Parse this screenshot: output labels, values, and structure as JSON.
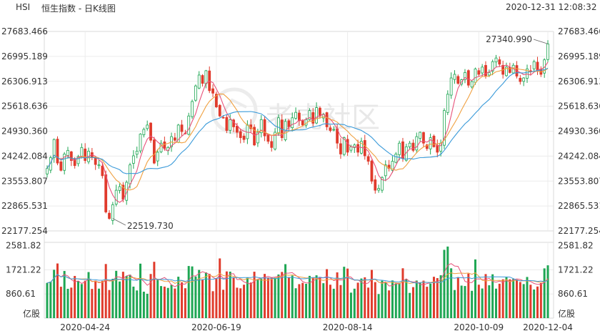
{
  "header": {
    "symbol": "HSI",
    "title": "恒生指数 - 日K线图",
    "timestamp": "2020-12-31 12:08:32"
  },
  "watermark": "老虎社区",
  "chart_data": {
    "type": "candlestick",
    "price_axis": {
      "ticks": [
        "27683.466",
        "26995.189",
        "26306.913",
        "25618.636",
        "24930.360",
        "24242.084",
        "23553.807",
        "22865.531",
        "22177.254"
      ],
      "range": [
        22177.254,
        27683.466
      ]
    },
    "volume_axis": {
      "ticks": [
        "2581.82",
        "1721.22",
        "860.61"
      ],
      "unit": "亿股",
      "range": [
        0,
        2700
      ]
    },
    "x_ticks": [
      "2020-04-24",
      "2020-06-19",
      "2020-08-14",
      "2020-10-09",
      "2020-12-04"
    ],
    "annotations": {
      "low_label": "22519.730",
      "high_label": "27340.990"
    },
    "colors": {
      "up": "#1ea653",
      "down": "#e03b2c",
      "ma1": "#e8527a",
      "ma2": "#f0a040",
      "ma3": "#3a9ad9"
    },
    "closes": [
      23900,
      24200,
      24700,
      24050,
      23850,
      24300,
      24400,
      24120,
      23980,
      24230,
      24480,
      24120,
      24380,
      24200,
      24010,
      24000,
      23700,
      22700,
      22520,
      22900,
      23300,
      23400,
      23050,
      23520,
      24000,
      24250,
      24380,
      24850,
      24980,
      25100,
      24680,
      24050,
      24350,
      24600,
      24450,
      24480,
      24780,
      24680,
      25100,
      24920,
      24870,
      25350,
      25750,
      26180,
      26480,
      26250,
      26600,
      26050,
      25980,
      25600,
      25350,
      25300,
      24950,
      25250,
      25050,
      24900,
      24750,
      24700,
      25100,
      25000,
      24550,
      24900,
      25250,
      24800,
      24650,
      24480,
      24900,
      25300,
      24750,
      25200,
      25050,
      25300,
      25450,
      25220,
      25100,
      25250,
      25500,
      25150,
      25580,
      25350,
      25400,
      25050,
      24950,
      24980,
      24600,
      24300,
      24750,
      24350,
      24500,
      24550,
      24350,
      24650,
      24250,
      24100,
      23550,
      23300,
      23350,
      23650,
      24000,
      23900,
      24100,
      24300,
      24600,
      24180,
      24500,
      24600,
      24400,
      24780,
      24900,
      24600,
      24450,
      24750,
      24500,
      24350,
      24600,
      25500,
      25950,
      26400,
      26500,
      26250,
      26350,
      26550,
      26200,
      26300,
      26650,
      26500,
      26700,
      26450,
      26550,
      26850,
      26950,
      26780,
      26500,
      26700,
      26550,
      26750,
      26450,
      26300,
      26400,
      26650,
      26600,
      26850,
      26600,
      26500,
      26900,
      27340
    ]
  }
}
